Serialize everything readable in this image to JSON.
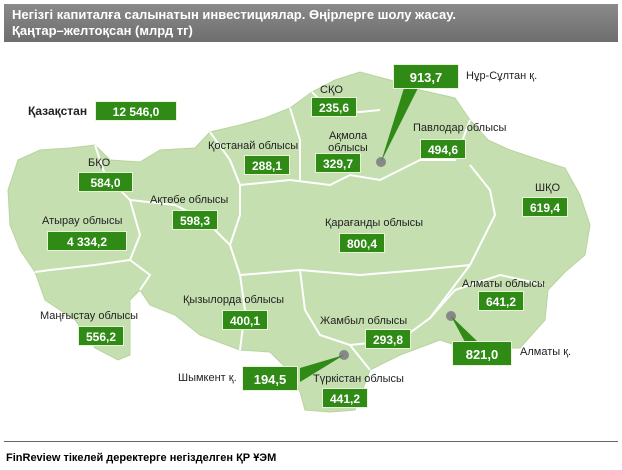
{
  "title": {
    "line1": "Негізгі капиталға салынатын инвестициялар. Өңірлерге шолу жасау.",
    "line2": "Қаңтар–желтоқсан (млрд тг)"
  },
  "country": {
    "label": "Қазақстан",
    "value": "12 546,0"
  },
  "regions": [
    {
      "id": "sko",
      "label": "СҚО",
      "value": "235,6"
    },
    {
      "id": "nur-sultan",
      "label": "Нұр-Сұлтан қ.",
      "value": "913,7"
    },
    {
      "id": "kostanay",
      "label": "Қостанай облысы",
      "value": "288,1"
    },
    {
      "id": "akmola",
      "label": "Ақмола облысы",
      "value": "329,7"
    },
    {
      "id": "pavlodar",
      "label": "Павлодар облысы",
      "value": "494,6"
    },
    {
      "id": "bko",
      "label": "БҚО",
      "value": "584,0"
    },
    {
      "id": "aktobe",
      "label": "Ақтөбе облысы",
      "value": "598,3"
    },
    {
      "id": "shko",
      "label": "ШҚО",
      "value": "619,4"
    },
    {
      "id": "atyrau",
      "label": "Атырау облысы",
      "value": "4 334,2"
    },
    {
      "id": "karaganda",
      "label": "Қарағанды облысы",
      "value": "800,4"
    },
    {
      "id": "almaty-region",
      "label": "Алматы облысы",
      "value": "641,2"
    },
    {
      "id": "mangystau",
      "label": "Маңғыстау облысы",
      "value": "556,2"
    },
    {
      "id": "kyzylorda",
      "label": "Қызылорда облысы",
      "value": "400,1"
    },
    {
      "id": "zhambyl",
      "label": "Жамбыл облысы",
      "value": "293,8"
    },
    {
      "id": "almaty-city",
      "label": "Алматы қ.",
      "value": "821,0"
    },
    {
      "id": "shymkent",
      "label": "Шымкент қ.",
      "value": "194,5"
    },
    {
      "id": "turkistan",
      "label": "Түркістан облысы",
      "value": "441,2"
    }
  ],
  "colors": {
    "land": "#c5dfb0",
    "border": "#ffffff",
    "value_box": "#2f8a16",
    "city_marker": "#888888"
  },
  "footer": {
    "source": "FinReview тікелей деректерге негізделген ҚР ҰЭМ"
  }
}
